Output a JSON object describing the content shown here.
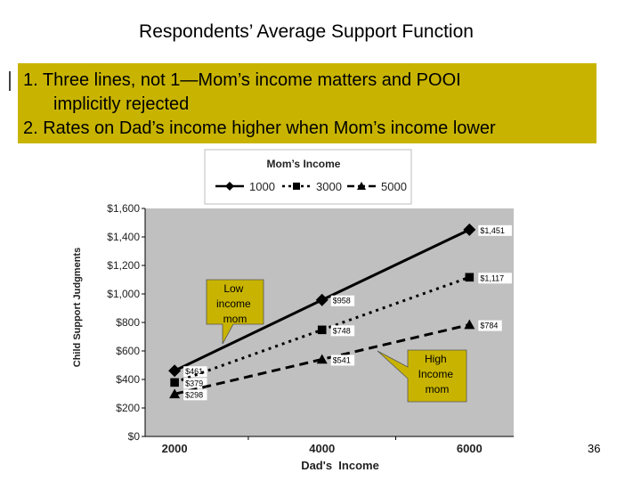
{
  "slide": {
    "title": "Respondents’ Average Support Function",
    "bullets": [
      "1. Three lines, not 1—Mom’s income matters and POOI",
      "implicitly rejected",
      "2. Rates on Dad’s income higher when Mom’s income lower"
    ],
    "page_number": "36"
  },
  "colors": {
    "callout": "#c8b400",
    "plot_bg": "#c0c0c0",
    "series": "#000000"
  },
  "chart_data": {
    "type": "line",
    "title": "",
    "xlabel": "Dad's  Income",
    "ylabel": "Child Support Judgments",
    "x": [
      2000,
      4000,
      6000
    ],
    "x_ticks": [
      "2000",
      "4000",
      "6000"
    ],
    "ylim": [
      0,
      1600
    ],
    "y_ticks": [
      "$0",
      "$200",
      "$400",
      "$600",
      "$800",
      "$1,000",
      "$1,200",
      "$1,400",
      "$1,600"
    ],
    "legend": {
      "title": "Mom’s Income",
      "position": "top"
    },
    "grid": false,
    "series": [
      {
        "name": "1000",
        "values": [
          461,
          958,
          1451
        ],
        "labels": [
          "$461",
          "$958",
          "$1,451"
        ],
        "marker": "diamond",
        "dash": "solid"
      },
      {
        "name": "3000",
        "values": [
          379,
          748,
          1117
        ],
        "labels": [
          "$379",
          "$748",
          "$1,117"
        ],
        "marker": "square",
        "dash": "dotted"
      },
      {
        "name": "5000",
        "values": [
          298,
          541,
          784
        ],
        "labels": [
          "$298",
          "$541",
          "$784"
        ],
        "marker": "triangle",
        "dash": "dashed"
      }
    ],
    "annotations": [
      {
        "text": [
          "Low",
          "income",
          "mom"
        ]
      },
      {
        "text": [
          "High",
          "Income",
          "mom"
        ]
      }
    ]
  }
}
